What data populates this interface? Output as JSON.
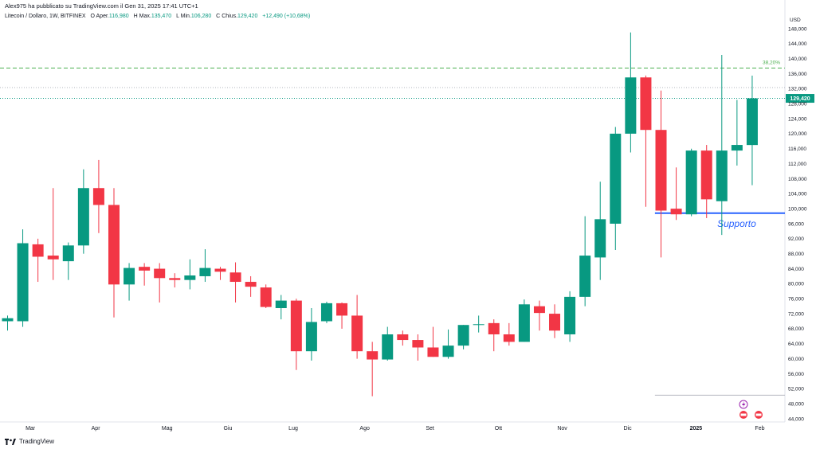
{
  "header": {
    "published_by": "Alex975 ha pubblicato su TradingView.com il Gen 31, 2025 17:41 UTC+1"
  },
  "info": {
    "symbol": "Litecoin / Dollaro, 1W, BITFINEX",
    "open_label": "O",
    "open_text": "Aper.",
    "open_value": "116,980",
    "high_label": "H",
    "high_text": "Max.",
    "high_value": "135,470",
    "low_label": "L",
    "low_text": "Min.",
    "low_value": "106,280",
    "close_label": "C",
    "close_text": "Chius.",
    "close_value": "129,420",
    "change_value": "+12,490 (+10,68%)"
  },
  "footer": {
    "brand": "TradingView"
  },
  "colors": {
    "up": "#089981",
    "down": "#f23645",
    "support_line": "#2962ff",
    "fib_line": "#4caf50",
    "price_line": "#089981"
  },
  "chart_data": {
    "type": "candlestick",
    "currency": "USD",
    "y_axis_ticks": [
      "44,000",
      "48,000",
      "52,000",
      "56,000",
      "60,000",
      "64,000",
      "68,000",
      "72,000",
      "76,000",
      "80,000",
      "84,000",
      "88,000",
      "92,000",
      "96,000",
      "100,000",
      "104,000",
      "108,000",
      "112,000",
      "116,000",
      "120,000",
      "124,000",
      "128,000",
      "132,000",
      "136,000",
      "140,000",
      "144,000",
      "148,000"
    ],
    "y_axis_range": [
      42,
      150
    ],
    "x_axis_labels": [
      {
        "label": "Mar",
        "index": 1.5
      },
      {
        "label": "Apr",
        "index": 5.8
      },
      {
        "label": "Mag",
        "index": 10.5
      },
      {
        "label": "Giu",
        "index": 14.5
      },
      {
        "label": "Lug",
        "index": 18.8
      },
      {
        "label": "Ago",
        "index": 23.5
      },
      {
        "label": "Set",
        "index": 27.8
      },
      {
        "label": "Ott",
        "index": 32.3
      },
      {
        "label": "Nov",
        "index": 36.5
      },
      {
        "label": "Dic",
        "index": 40.8
      },
      {
        "label": "2025",
        "index": 45.3
      },
      {
        "label": "Feb",
        "index": 49.5
      }
    ],
    "candles": [
      {
        "o": 70.0,
        "h": 71.5,
        "l": 67.5,
        "c": 70.8
      },
      {
        "o": 70.0,
        "h": 94.5,
        "l": 68.5,
        "c": 90.8
      },
      {
        "o": 90.5,
        "h": 92.0,
        "l": 80.5,
        "c": 87.2
      },
      {
        "o": 87.5,
        "h": 105.5,
        "l": 81.0,
        "c": 86.5
      },
      {
        "o": 86.0,
        "h": 91.0,
        "l": 81.0,
        "c": 90.2
      },
      {
        "o": 90.2,
        "h": 110.5,
        "l": 88.0,
        "c": 105.5
      },
      {
        "o": 105.5,
        "h": 113.0,
        "l": 93.5,
        "c": 101.0
      },
      {
        "o": 101.0,
        "h": 105.5,
        "l": 71.0,
        "c": 79.8
      },
      {
        "o": 79.8,
        "h": 85.5,
        "l": 75.5,
        "c": 84.2
      },
      {
        "o": 84.5,
        "h": 85.5,
        "l": 79.5,
        "c": 83.5
      },
      {
        "o": 84.0,
        "h": 85.5,
        "l": 75.0,
        "c": 81.5
      },
      {
        "o": 81.5,
        "h": 82.8,
        "l": 79.0,
        "c": 81.0
      },
      {
        "o": 81.0,
        "h": 86.5,
        "l": 78.5,
        "c": 82.2
      },
      {
        "o": 82.0,
        "h": 89.2,
        "l": 80.5,
        "c": 84.2
      },
      {
        "o": 84.0,
        "h": 84.5,
        "l": 81.0,
        "c": 83.2
      },
      {
        "o": 83.0,
        "h": 85.7,
        "l": 75.0,
        "c": 80.5
      },
      {
        "o": 80.5,
        "h": 82.0,
        "l": 76.5,
        "c": 79.2
      },
      {
        "o": 79.0,
        "h": 79.8,
        "l": 73.5,
        "c": 73.8
      },
      {
        "o": 73.5,
        "h": 77.0,
        "l": 70.5,
        "c": 75.5
      },
      {
        "o": 75.5,
        "h": 76.0,
        "l": 57.0,
        "c": 62.0
      },
      {
        "o": 62.0,
        "h": 73.5,
        "l": 59.5,
        "c": 69.8
      },
      {
        "o": 70.0,
        "h": 75.2,
        "l": 69.5,
        "c": 74.8
      },
      {
        "o": 74.8,
        "h": 75.0,
        "l": 68.0,
        "c": 71.5
      },
      {
        "o": 71.5,
        "h": 77.0,
        "l": 60.0,
        "c": 62.0
      },
      {
        "o": 62.0,
        "h": 64.5,
        "l": 50.0,
        "c": 59.8
      },
      {
        "o": 59.8,
        "h": 68.5,
        "l": 59.5,
        "c": 66.5
      },
      {
        "o": 66.5,
        "h": 67.5,
        "l": 63.5,
        "c": 65.0
      },
      {
        "o": 65.0,
        "h": 66.5,
        "l": 59.5,
        "c": 63.0
      },
      {
        "o": 63.0,
        "h": 68.5,
        "l": 60.5,
        "c": 60.5
      },
      {
        "o": 60.5,
        "h": 67.8,
        "l": 60.0,
        "c": 63.5
      },
      {
        "o": 63.5,
        "h": 69.0,
        "l": 62.5,
        "c": 69.0
      },
      {
        "o": 69.0,
        "h": 71.5,
        "l": 67.0,
        "c": 69.2
      },
      {
        "o": 69.5,
        "h": 70.5,
        "l": 62.0,
        "c": 66.5
      },
      {
        "o": 66.5,
        "h": 69.5,
        "l": 63.5,
        "c": 64.5
      },
      {
        "o": 64.5,
        "h": 75.8,
        "l": 64.5,
        "c": 74.5
      },
      {
        "o": 74.0,
        "h": 75.5,
        "l": 67.5,
        "c": 72.2
      },
      {
        "o": 72.0,
        "h": 74.5,
        "l": 65.5,
        "c": 67.5
      },
      {
        "o": 66.5,
        "h": 78.0,
        "l": 64.5,
        "c": 76.5
      },
      {
        "o": 76.5,
        "h": 98.0,
        "l": 74.0,
        "c": 87.5
      },
      {
        "o": 87.0,
        "h": 107.2,
        "l": 81.0,
        "c": 97.2
      },
      {
        "o": 96.0,
        "h": 121.8,
        "l": 89.0,
        "c": 120.0
      },
      {
        "o": 120.0,
        "h": 147.0,
        "l": 115.0,
        "c": 135.0
      },
      {
        "o": 135.0,
        "h": 135.5,
        "l": 100.5,
        "c": 121.0
      },
      {
        "o": 121.0,
        "h": 131.5,
        "l": 87.0,
        "c": 99.5
      },
      {
        "o": 100.0,
        "h": 111.0,
        "l": 97.0,
        "c": 98.5
      },
      {
        "o": 98.5,
        "h": 116.0,
        "l": 98.0,
        "c": 115.5
      },
      {
        "o": 115.5,
        "h": 117.0,
        "l": 97.5,
        "c": 102.5
      },
      {
        "o": 102.0,
        "h": 141.0,
        "l": 93.0,
        "c": 115.5
      },
      {
        "o": 115.5,
        "h": 129.0,
        "l": 111.5,
        "c": 117.0
      },
      {
        "o": 116.98,
        "h": 135.47,
        "l": 106.28,
        "c": 129.42
      }
    ],
    "horizontal_lines": [
      {
        "name": "fib-level",
        "value": 137.5,
        "label": "38,20%",
        "style": "dashed"
      },
      {
        "name": "grey-level",
        "value": 132.3,
        "style": "dotted"
      },
      {
        "name": "last-price",
        "value": 129.42,
        "label": "129,420",
        "style": "dotted"
      },
      {
        "name": "support",
        "value": 98.8,
        "label": "Supporto",
        "style": "solid",
        "from_index": 42.6
      },
      {
        "name": "bottom-ref",
        "value": 50.3,
        "style": "solid",
        "from_index": 42.6
      }
    ]
  }
}
